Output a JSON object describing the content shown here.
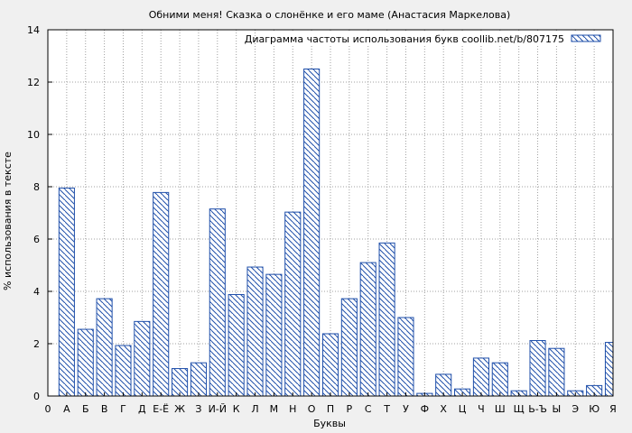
{
  "chart_data": {
    "type": "bar",
    "title": "Обними меня! Сказка о слонёнке и его маме (Анастасия Маркелова)",
    "xlabel": "Буквы",
    "ylabel": "% использования в тексте",
    "legend": {
      "label": "Диаграмма частоты использования букв coollib.net/b/807175",
      "placement": "top-right"
    },
    "x_tick_labels": [
      "0",
      "А",
      "Б",
      "В",
      "Г",
      "Д",
      "Е-Ё",
      "Ж",
      "З",
      "И-Й",
      "К",
      "Л",
      "М",
      "Н",
      "О",
      "П",
      "Р",
      "С",
      "Т",
      "У",
      "Ф",
      "Х",
      "Ц",
      "Ч",
      "Ш",
      "Щ",
      "Ь-Ъ",
      "Ы",
      "Э",
      "Ю",
      "Я"
    ],
    "categories": [
      "А",
      "Б",
      "В",
      "Г",
      "Д",
      "Е-Ё",
      "Ж",
      "З",
      "И-Й",
      "К",
      "Л",
      "М",
      "Н",
      "О",
      "П",
      "Р",
      "С",
      "Т",
      "У",
      "Ф",
      "Х",
      "Ц",
      "Ч",
      "Ш",
      "Щ",
      "Ь-Ъ",
      "Ы",
      "Э",
      "Ю",
      "Я"
    ],
    "values": [
      7.95,
      2.55,
      3.72,
      1.93,
      2.85,
      7.78,
      1.05,
      1.27,
      7.15,
      3.88,
      4.93,
      4.65,
      7.03,
      12.5,
      2.38,
      3.72,
      5.1,
      5.85,
      3.0,
      0.1,
      0.83,
      0.27,
      1.45,
      1.27,
      0.2,
      2.12,
      1.82,
      0.2,
      0.4,
      2.05
    ],
    "ylim": [
      0,
      14
    ],
    "yticks": [
      0,
      2,
      4,
      6,
      8,
      10,
      12,
      14
    ],
    "grid": true,
    "colors": {
      "bar_stroke": "#1f4faa",
      "bar_hatch": "#1f4faa",
      "bar_fill": "#ffffff",
      "plot_background": "#ffffff",
      "page_background": "#f0f0f0",
      "grid": "#a0a0a0"
    }
  }
}
